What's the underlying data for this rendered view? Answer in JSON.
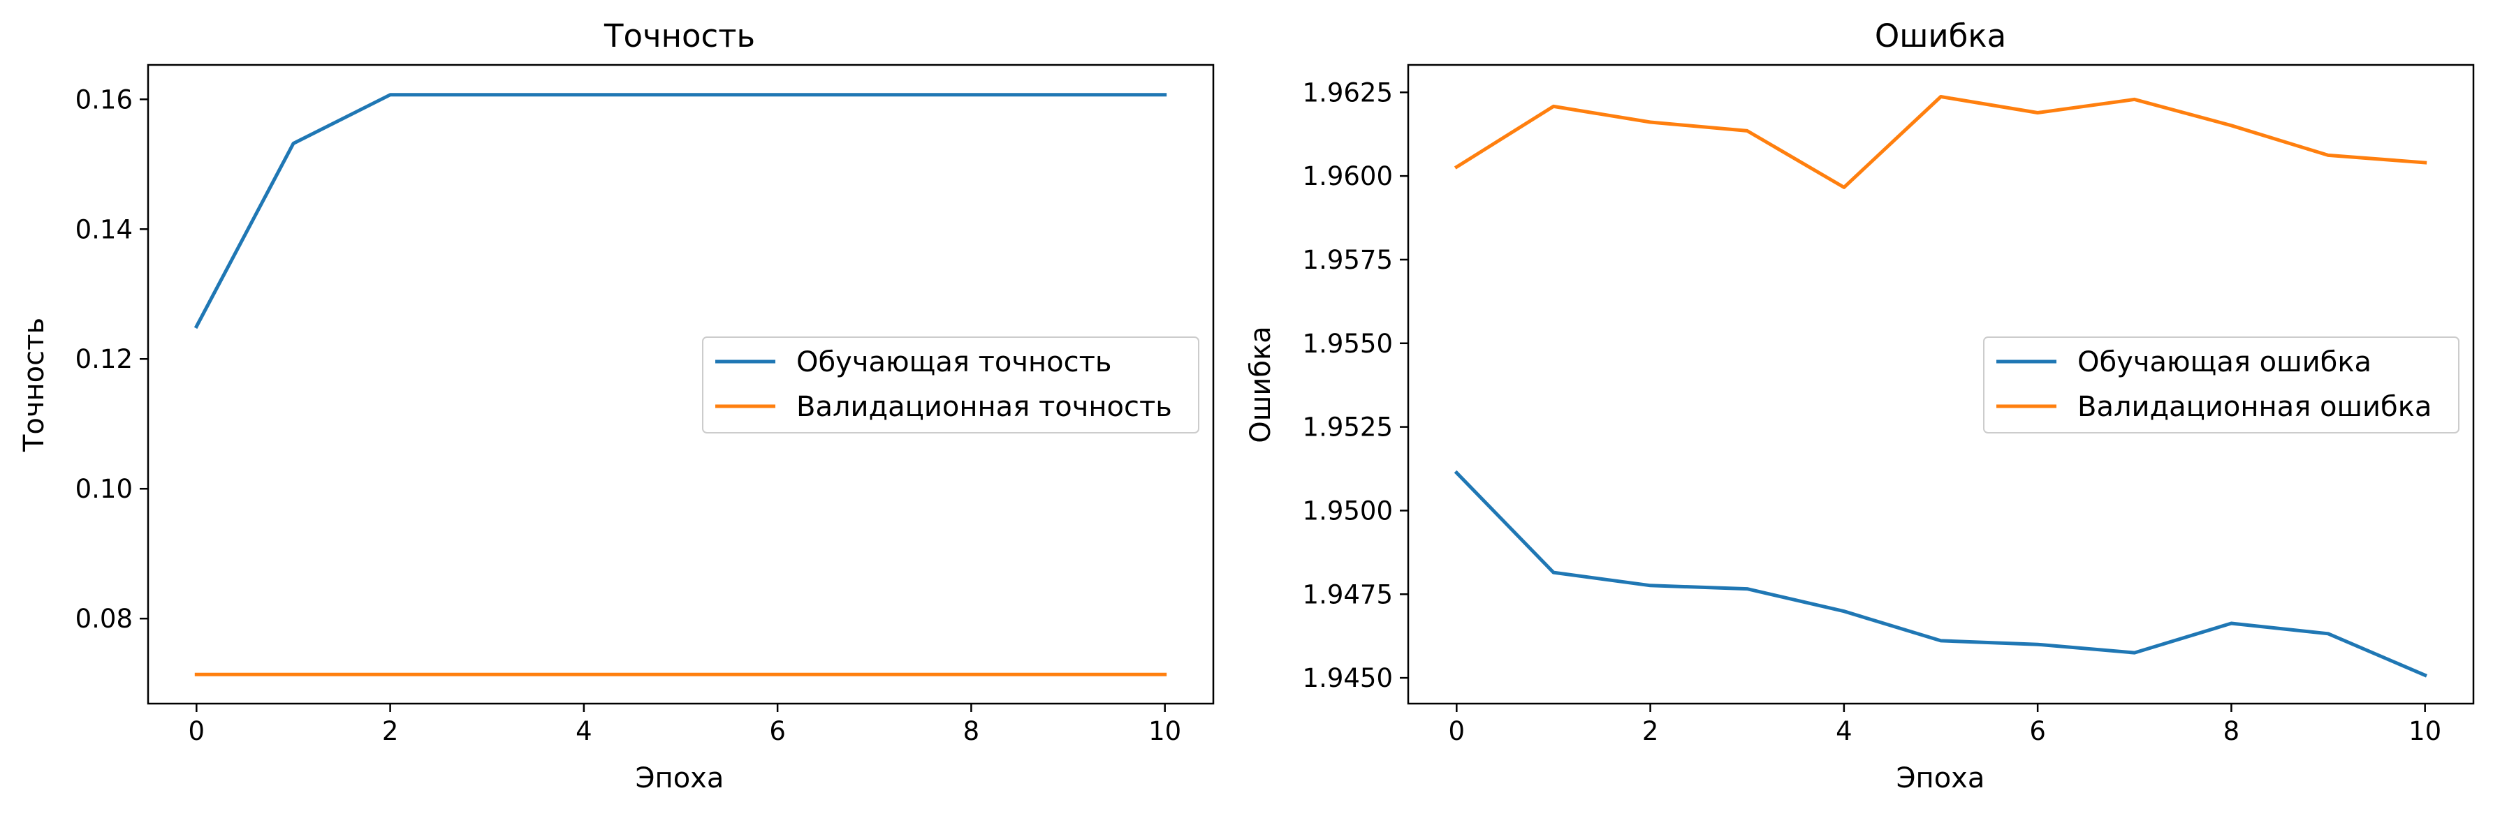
{
  "chart_data": [
    {
      "type": "line",
      "title": "Точность",
      "xlabel": "Эпоха",
      "ylabel": "Точность",
      "xlim": [
        -0.5,
        10.5
      ],
      "ylim": [
        0.0669,
        0.1653
      ],
      "xticks": [
        0,
        2,
        4,
        6,
        8,
        10
      ],
      "xtick_labels": [
        "0",
        "2",
        "4",
        "6",
        "8",
        "10"
      ],
      "yticks": [
        0.08,
        0.1,
        0.12,
        0.14,
        0.16
      ],
      "ytick_labels": [
        "0.08",
        "0.10",
        "0.12",
        "0.14",
        "0.16"
      ],
      "x": [
        0,
        1,
        2,
        3,
        4,
        5,
        6,
        7,
        8,
        9,
        10
      ],
      "series": [
        {
          "name": "Обучающая точность",
          "color": "#1f77b4",
          "values": [
            0.125,
            0.1532,
            0.1607,
            0.1607,
            0.1607,
            0.1607,
            0.1607,
            0.1607,
            0.1607,
            0.1607,
            0.1607
          ]
        },
        {
          "name": "Валидационная точность",
          "color": "#ff7f0e",
          "values": [
            0.0714,
            0.0714,
            0.0714,
            0.0714,
            0.0714,
            0.0714,
            0.0714,
            0.0714,
            0.0714,
            0.0714,
            0.0714
          ]
        }
      ],
      "grid": false,
      "legend_position": "center-right"
    },
    {
      "type": "line",
      "title": "Ошибка",
      "xlabel": "Эпоха",
      "ylabel": "Ошибка",
      "xlim": [
        -0.5,
        10.5
      ],
      "ylim": [
        1.94423,
        1.96332
      ],
      "xticks": [
        0,
        2,
        4,
        6,
        8,
        10
      ],
      "xtick_labels": [
        "0",
        "2",
        "4",
        "6",
        "8",
        "10"
      ],
      "yticks": [
        1.945,
        1.9475,
        1.95,
        1.9525,
        1.955,
        1.9575,
        1.96,
        1.9625
      ],
      "ytick_labels": [
        "1.9450",
        "1.9475",
        "1.9500",
        "1.9525",
        "1.9550",
        "1.9575",
        "1.9600",
        "1.9625"
      ],
      "x": [
        0,
        1,
        2,
        3,
        4,
        5,
        6,
        7,
        8,
        9,
        10
      ],
      "series": [
        {
          "name": "Обучающая ошибка",
          "color": "#1f77b4",
          "values": [
            1.95113,
            1.94815,
            1.94776,
            1.94766,
            1.94699,
            1.94611,
            1.946,
            1.94575,
            1.94663,
            1.94632,
            1.94508
          ]
        },
        {
          "name": "Валидационная ошибка",
          "color": "#ff7f0e",
          "values": [
            1.96027,
            1.96208,
            1.96161,
            1.96135,
            1.95966,
            1.96237,
            1.96189,
            1.96229,
            1.96151,
            1.96062,
            1.9604
          ]
        }
      ],
      "grid": false,
      "legend_position": "center-right"
    }
  ]
}
